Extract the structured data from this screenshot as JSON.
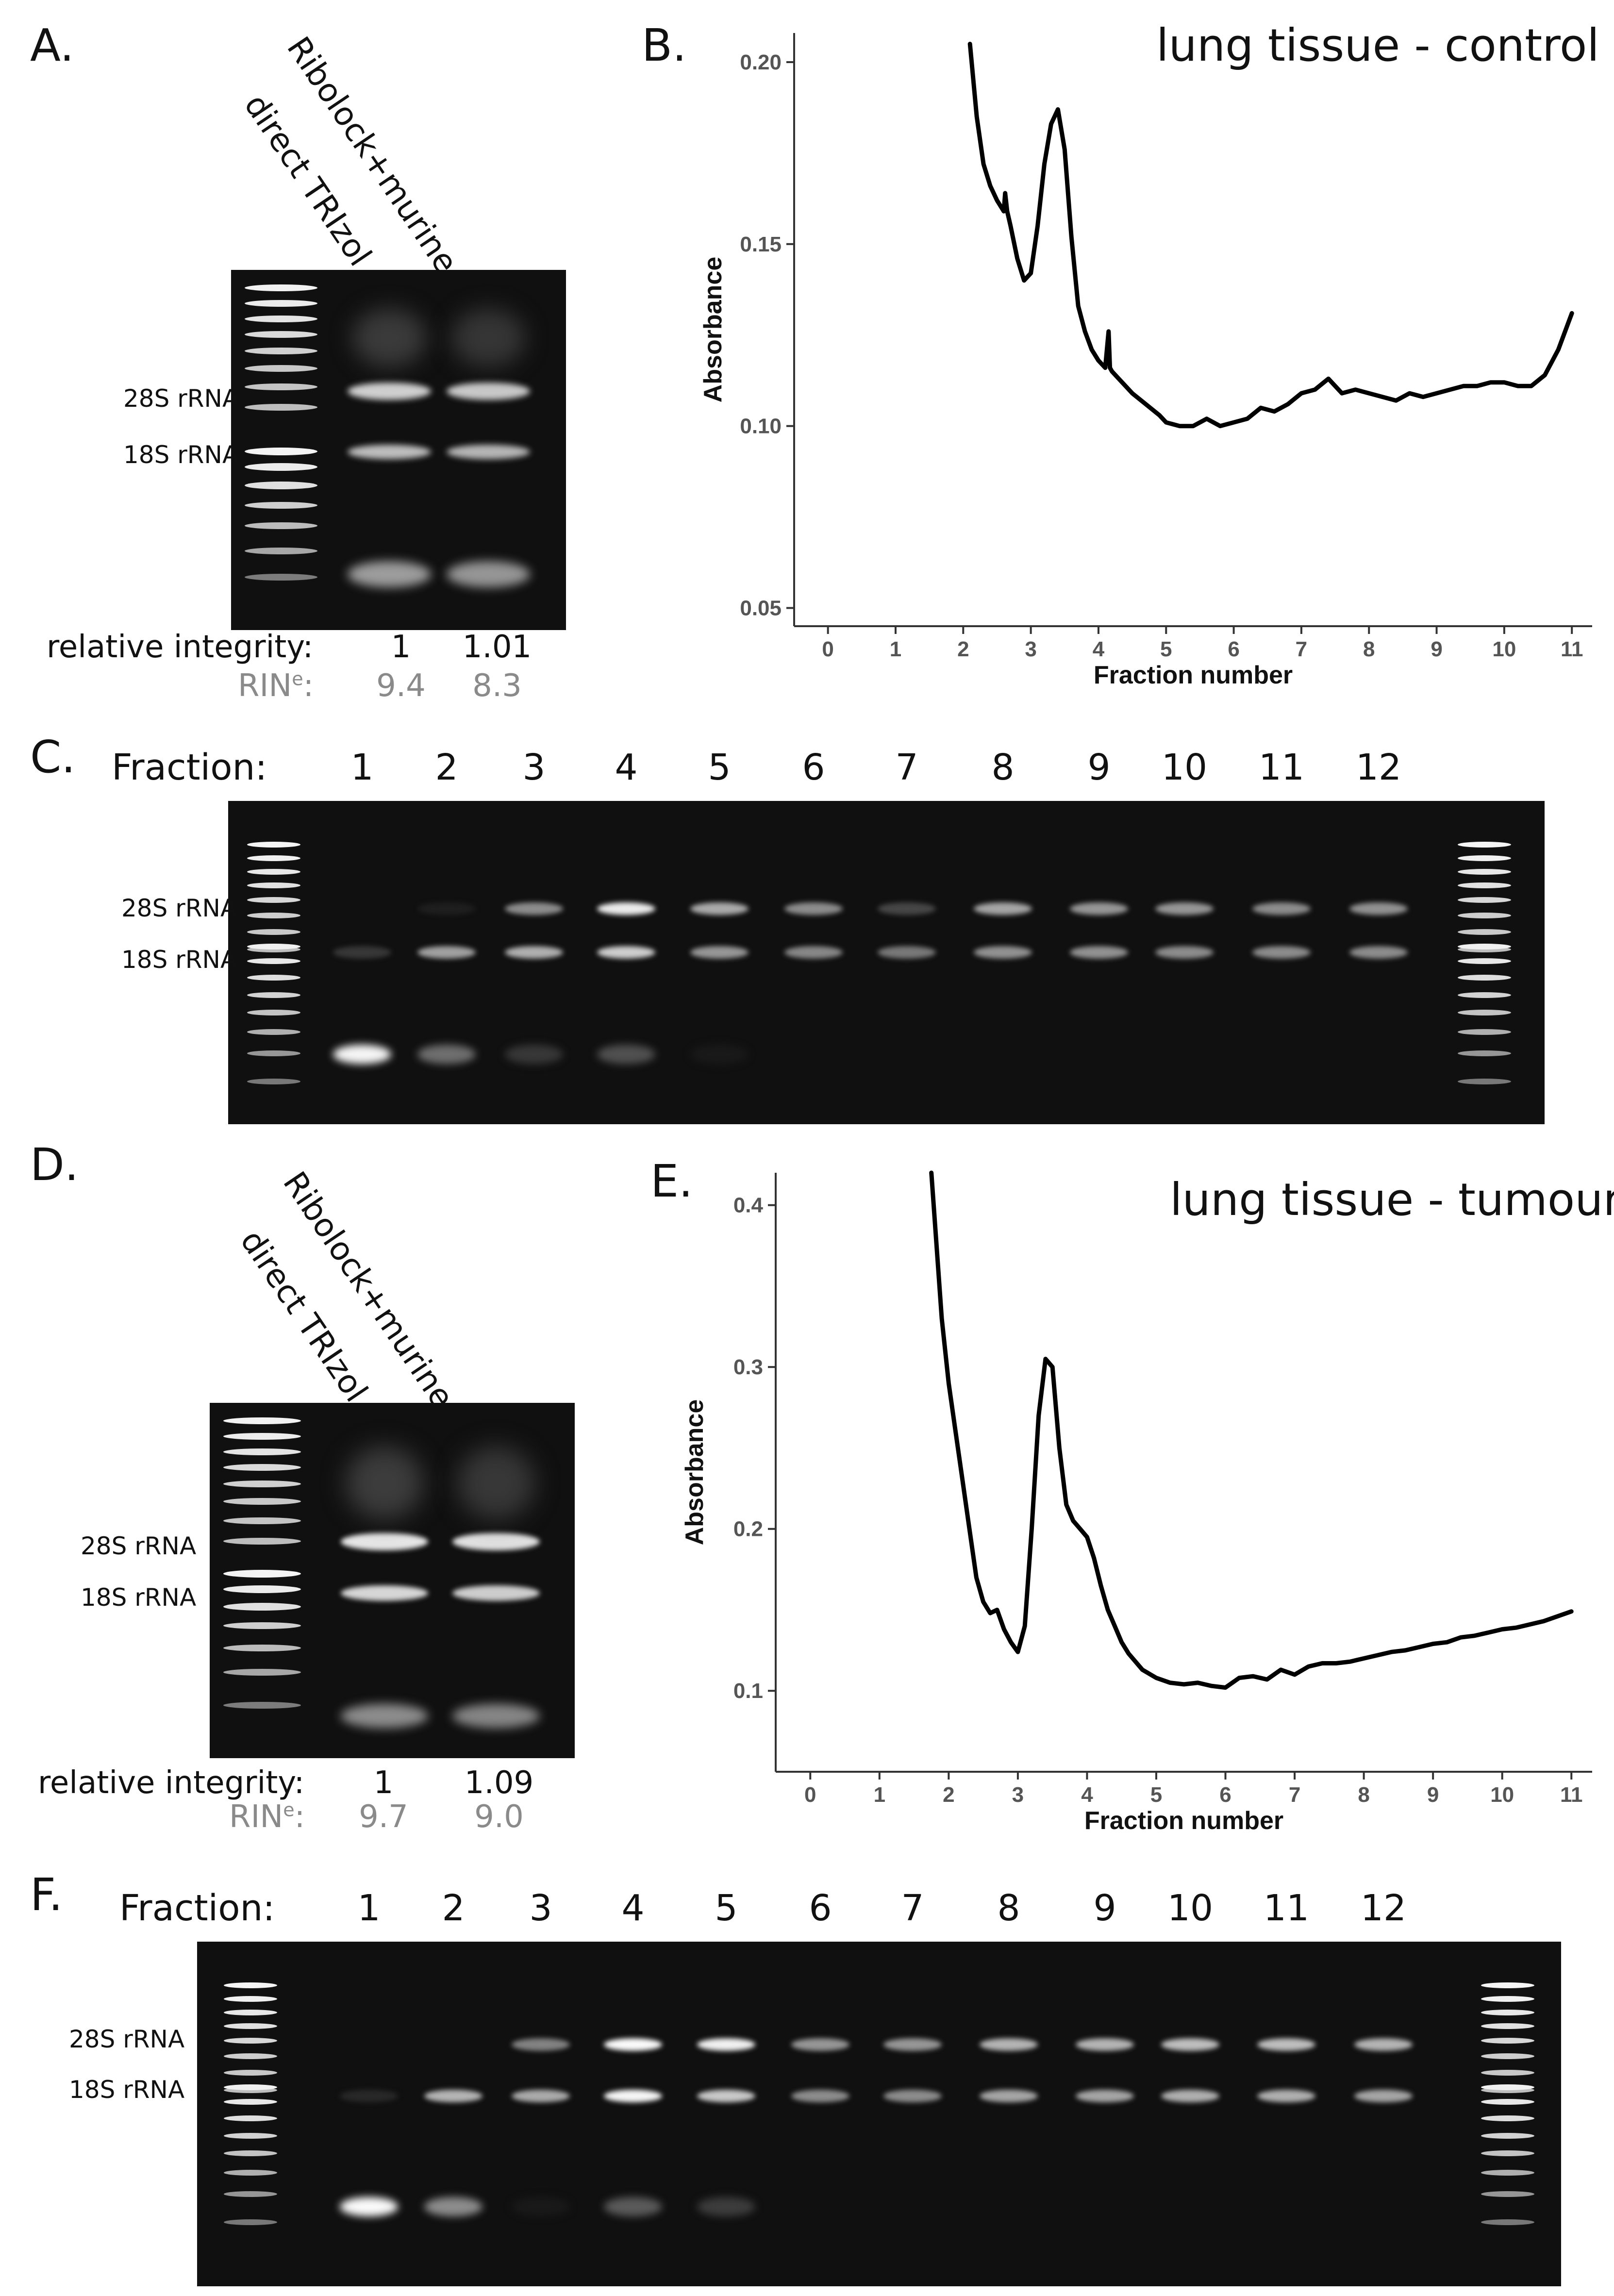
{
  "panels": {
    "A": {
      "letter": "A.",
      "lane1": "direct TRIzol",
      "lane2": "Ribolock+murine RI",
      "rRNA28": "28S rRNA",
      "rRNA18": "18S rRNA",
      "ri_label": "relative integrity:",
      "ri_vals": [
        "1",
        "1.01"
      ],
      "rin_label": "RIN",
      "rin_sup": "e",
      "rin_colon": ":",
      "rin_vals": [
        "9.4",
        "8.3"
      ]
    },
    "B": {
      "letter": "B."
    },
    "C": {
      "letter": "C.",
      "fraction_label": "Fraction:",
      "rRNA28": "28S rRNA",
      "rRNA18": "18S rRNA"
    },
    "D": {
      "letter": "D.",
      "lane1": "direct TRIzol",
      "lane2": "Ribolock+murine RI",
      "rRNA28": "28S rRNA",
      "rRNA18": "18S rRNA",
      "ri_label": "relative integrity:",
      "ri_vals": [
        "1",
        "1.09"
      ],
      "rin_label": "RIN",
      "rin_sup": "e",
      "rin_colon": ":",
      "rin_vals": [
        "9.7",
        "9.0"
      ]
    },
    "E": {
      "letter": "E."
    },
    "F": {
      "letter": "F.",
      "fraction_label": "Fraction:",
      "rRNA28": "28S rRNA",
      "rRNA18": "18S rRNA"
    }
  },
  "fractions": [
    "1",
    "2",
    "3",
    "4",
    "5",
    "6",
    "7",
    "8",
    "9",
    "10",
    "11",
    "12"
  ],
  "chart_data": [
    {
      "type": "line",
      "panel": "B",
      "title": "lung tissue - control",
      "xlabel": "Fraction number",
      "ylabel": "Absorbance",
      "xlim": [
        -0.5,
        11.3
      ],
      "ylim": [
        0.045,
        0.208
      ],
      "xticks": [
        0,
        1,
        2,
        3,
        4,
        5,
        6,
        7,
        8,
        9,
        10,
        11
      ],
      "yticks": [
        0.05,
        0.1,
        0.15,
        0.2
      ],
      "ytick_labels": [
        "0.05",
        "0.10",
        "0.15",
        "0.20"
      ],
      "grid": false,
      "series": [
        {
          "x": [
            2.1,
            2.2,
            2.3,
            2.4,
            2.5,
            2.6,
            2.62,
            2.65,
            2.7,
            2.8,
            2.9,
            3.0,
            3.1,
            3.2,
            3.3,
            3.4,
            3.5,
            3.6,
            3.7,
            3.8,
            3.9,
            4.0,
            4.1,
            4.15,
            4.17,
            4.2,
            4.3,
            4.5,
            4.7,
            4.9,
            5.0,
            5.2,
            5.4,
            5.6,
            5.8,
            6.0,
            6.2,
            6.4,
            6.6,
            6.8,
            7.0,
            7.2,
            7.4,
            7.6,
            7.8,
            8.0,
            8.2,
            8.4,
            8.6,
            8.8,
            9.0,
            9.2,
            9.4,
            9.6,
            9.8,
            10.0,
            10.2,
            10.4,
            10.6,
            10.8,
            11.0
          ],
          "y": [
            0.205,
            0.185,
            0.172,
            0.166,
            0.162,
            0.159,
            0.164,
            0.159,
            0.155,
            0.146,
            0.14,
            0.142,
            0.155,
            0.172,
            0.183,
            0.187,
            0.176,
            0.152,
            0.133,
            0.126,
            0.121,
            0.118,
            0.116,
            0.126,
            0.116,
            0.115,
            0.113,
            0.109,
            0.106,
            0.103,
            0.101,
            0.1,
            0.1,
            0.102,
            0.1,
            0.101,
            0.102,
            0.105,
            0.104,
            0.106,
            0.109,
            0.11,
            0.113,
            0.109,
            0.11,
            0.109,
            0.108,
            0.107,
            0.109,
            0.108,
            0.109,
            0.11,
            0.111,
            0.111,
            0.112,
            0.112,
            0.111,
            0.111,
            0.114,
            0.121,
            0.131
          ]
        }
      ]
    },
    {
      "type": "line",
      "panel": "E",
      "title": "lung tissue - tumour",
      "xlabel": "Fraction number",
      "ylabel": "Absorbance",
      "xlim": [
        -0.5,
        11.3
      ],
      "ylim": [
        0.05,
        0.42
      ],
      "xticks": [
        0,
        1,
        2,
        3,
        4,
        5,
        6,
        7,
        8,
        9,
        10,
        11
      ],
      "yticks": [
        0.1,
        0.2,
        0.3,
        0.4
      ],
      "ytick_labels": [
        "0.1",
        "0.2",
        "0.3",
        "0.4"
      ],
      "grid": false,
      "series": [
        {
          "x": [
            1.75,
            1.9,
            2.0,
            2.1,
            2.2,
            2.3,
            2.4,
            2.5,
            2.6,
            2.7,
            2.8,
            2.9,
            3.0,
            3.1,
            3.2,
            3.3,
            3.4,
            3.5,
            3.6,
            3.7,
            3.8,
            3.9,
            4.0,
            4.1,
            4.2,
            4.3,
            4.4,
            4.5,
            4.6,
            4.8,
            5.0,
            5.2,
            5.4,
            5.6,
            5.8,
            6.0,
            6.2,
            6.4,
            6.6,
            6.8,
            7.0,
            7.2,
            7.4,
            7.6,
            7.8,
            8.0,
            8.2,
            8.4,
            8.6,
            8.8,
            9.0,
            9.2,
            9.4,
            9.6,
            9.8,
            10.0,
            10.2,
            10.4,
            10.6,
            10.8,
            11.0
          ],
          "y": [
            0.42,
            0.33,
            0.29,
            0.26,
            0.23,
            0.2,
            0.17,
            0.155,
            0.148,
            0.15,
            0.138,
            0.13,
            0.124,
            0.14,
            0.2,
            0.27,
            0.305,
            0.3,
            0.25,
            0.215,
            0.205,
            0.2,
            0.195,
            0.182,
            0.165,
            0.15,
            0.14,
            0.13,
            0.123,
            0.113,
            0.108,
            0.105,
            0.104,
            0.105,
            0.103,
            0.102,
            0.108,
            0.109,
            0.107,
            0.113,
            0.11,
            0.115,
            0.117,
            0.117,
            0.118,
            0.12,
            0.122,
            0.124,
            0.125,
            0.127,
            0.129,
            0.13,
            0.133,
            0.134,
            0.136,
            0.138,
            0.139,
            0.141,
            0.143,
            0.146,
            0.149
          ]
        }
      ]
    }
  ]
}
